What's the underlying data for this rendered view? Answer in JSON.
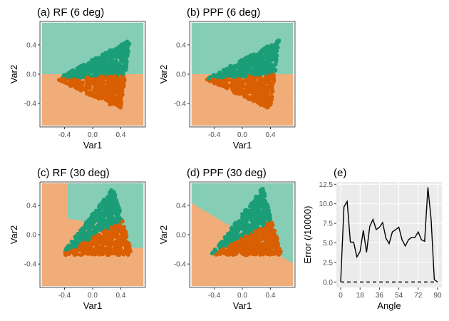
{
  "colors": {
    "orange": "#d95f02",
    "green": "#1b9e77",
    "bg_orange": "#f0ad7a",
    "bg_green": "#86cdb6",
    "panel_bg": "#ebebeb",
    "grid": "#ffffff",
    "line": "#000000"
  },
  "chart_data": [
    {
      "type": "scatter",
      "title": "(a) RF (6 deg)",
      "xlabel": "Var1",
      "ylabel": "Var2",
      "xlim": [
        -0.75,
        0.75
      ],
      "ylim": [
        -0.72,
        0.72
      ],
      "xticks": [
        "-0.4",
        "0.0",
        "0.4"
      ],
      "xtick_values": [
        -0.4,
        0.0,
        0.4
      ],
      "yticks": [
        "0.4",
        "0.0",
        "-0.4"
      ],
      "ytick_values": [
        0.4,
        0.0,
        -0.4
      ],
      "angle_deg": 6,
      "background_regions": [
        {
          "class": "green",
          "polygon": [
            [
              -0.72,
              0.0
            ],
            [
              0.72,
              0.0
            ],
            [
              0.72,
              0.7
            ],
            [
              -0.72,
              0.7
            ]
          ]
        },
        {
          "class": "orange",
          "polygon": [
            [
              -0.72,
              -0.7
            ],
            [
              0.72,
              -0.7
            ],
            [
              0.72,
              0.0
            ],
            [
              -0.72,
              0.0
            ]
          ]
        }
      ]
    },
    {
      "type": "scatter",
      "title": "(b) PPF (6 deg)",
      "xlabel": "Var1",
      "ylabel": "Var2",
      "xlim": [
        -0.75,
        0.75
      ],
      "ylim": [
        -0.72,
        0.72
      ],
      "xticks": [
        "-0.4",
        "0.0",
        "0.4"
      ],
      "xtick_values": [
        -0.4,
        0.0,
        0.4
      ],
      "yticks": [
        "0.4",
        "0.0",
        "-0.4"
      ],
      "ytick_values": [
        0.4,
        0.0,
        -0.4
      ],
      "angle_deg": 6,
      "background_regions": [
        {
          "class": "green",
          "polygon": [
            [
              -0.72,
              0.0
            ],
            [
              0.72,
              0.0
            ],
            [
              0.72,
              0.7
            ],
            [
              -0.72,
              0.7
            ]
          ]
        },
        {
          "class": "orange",
          "polygon": [
            [
              -0.72,
              -0.7
            ],
            [
              0.72,
              -0.7
            ],
            [
              0.72,
              0.0
            ],
            [
              -0.72,
              0.0
            ]
          ]
        }
      ]
    },
    {
      "type": "scatter",
      "title": "(c) RF (30 deg)",
      "xlabel": "Var1",
      "ylabel": "Var2",
      "xlim": [
        -0.75,
        0.75
      ],
      "ylim": [
        -0.72,
        0.72
      ],
      "xticks": [
        "-0.4",
        "0.0",
        "0.4"
      ],
      "xtick_values": [
        -0.4,
        0.0,
        0.4
      ],
      "yticks": [
        "0.4",
        "0.0",
        "-0.4"
      ],
      "ytick_values": [
        0.4,
        0.0,
        -0.4
      ],
      "angle_deg": 30,
      "background_regions": [
        {
          "class": "orange",
          "polygon": [
            [
              -0.72,
              -0.7
            ],
            [
              0.72,
              -0.7
            ],
            [
              0.72,
              -0.7
            ],
            [
              -0.72,
              -0.7
            ]
          ]
        },
        {
          "class": "orange",
          "polygon": [
            [
              -0.72,
              -0.7
            ],
            [
              0.72,
              -0.7
            ],
            [
              0.72,
              0.7
            ],
            [
              -0.72,
              0.7
            ]
          ]
        },
        {
          "class": "green",
          "polygon": [
            [
              -0.36,
              0.7
            ],
            [
              0.72,
              0.7
            ],
            [
              0.72,
              -0.18
            ],
            [
              0.48,
              -0.18
            ],
            [
              0.42,
              0.1
            ],
            [
              -0.36,
              0.22
            ]
          ]
        }
      ]
    },
    {
      "type": "scatter",
      "title": "(d) PPF (30 deg)",
      "xlabel": "Var1",
      "ylabel": "Var2",
      "xlim": [
        -0.75,
        0.75
      ],
      "ylim": [
        -0.72,
        0.72
      ],
      "xticks": [
        "-0.4",
        "0.0",
        "0.4"
      ],
      "xtick_values": [
        -0.4,
        0.0,
        0.4
      ],
      "yticks": [
        "0.4",
        "0.0",
        "-0.4"
      ],
      "ytick_values": [
        0.4,
        0.0,
        -0.4
      ],
      "angle_deg": 30,
      "background_regions": [
        {
          "class": "orange",
          "polygon": [
            [
              -0.72,
              -0.7
            ],
            [
              0.72,
              -0.7
            ],
            [
              0.72,
              0.7
            ],
            [
              -0.72,
              0.7
            ]
          ]
        },
        {
          "class": "green",
          "polygon": [
            [
              -0.72,
              0.43
            ],
            [
              0.72,
              -0.39
            ],
            [
              0.72,
              0.7
            ],
            [
              -0.72,
              0.7
            ]
          ]
        }
      ]
    },
    {
      "type": "line",
      "title": "(e)",
      "xlabel": "Angle",
      "ylabel": "Error (/10000)",
      "xlim": [
        -4,
        94
      ],
      "ylim": [
        -0.7,
        12.8
      ],
      "xticks": [
        "0",
        "18",
        "36",
        "54",
        "72",
        "90"
      ],
      "xtick_values": [
        0,
        18,
        36,
        54,
        72,
        90
      ],
      "yticks": [
        "12.5",
        "10.0",
        "7.5",
        "5.0",
        "2.5",
        "0.0"
      ],
      "ytick_values": [
        12.5,
        10.0,
        7.5,
        5.0,
        2.5,
        0.0
      ],
      "series": [
        {
          "style": "solid",
          "x": [
            0,
            3,
            6,
            9,
            12,
            15,
            18,
            21,
            24,
            27,
            30,
            33,
            36,
            39,
            42,
            45,
            48,
            51,
            54,
            57,
            60,
            63,
            66,
            69,
            72,
            75,
            78,
            81,
            84,
            87,
            90
          ],
          "y": [
            0.0,
            9.6,
            10.3,
            5.1,
            5.1,
            3.2,
            3.9,
            6.6,
            3.8,
            7.1,
            8.0,
            6.7,
            7.0,
            7.6,
            5.6,
            4.9,
            6.4,
            6.7,
            7.0,
            5.4,
            4.6,
            5.4,
            5.7,
            5.7,
            6.4,
            5.4,
            5.2,
            12.1,
            8.0,
            0.3,
            0.0
          ]
        },
        {
          "style": "dashed",
          "x": [
            0,
            90
          ],
          "y": [
            0.0,
            0.0
          ]
        }
      ]
    }
  ]
}
